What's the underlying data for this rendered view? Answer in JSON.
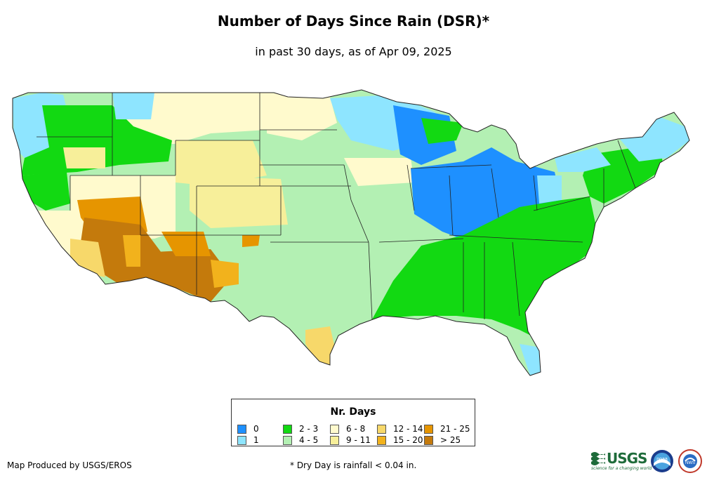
{
  "title": "Number of Days Since Rain (DSR)*",
  "subtitle": "in past 30 days, as of Apr 09, 2025",
  "legend": {
    "title": "Nr. Days",
    "items": [
      {
        "label": "0",
        "color": "#1e90ff"
      },
      {
        "label": "1",
        "color": "#8ee5ff"
      },
      {
        "label": "2 - 3",
        "color": "#12d912"
      },
      {
        "label": "4 - 5",
        "color": "#b3f0b3"
      },
      {
        "label": "6 - 8",
        "color": "#fffacd"
      },
      {
        "label": "9 - 11",
        "color": "#f7ef9a"
      },
      {
        "label": "12 - 14",
        "color": "#f7d86a"
      },
      {
        "label": "15 - 20",
        "color": "#f2b21c"
      },
      {
        "label": "21 - 25",
        "color": "#e69500"
      },
      {
        "label": "> 25",
        "color": "#c47a0c"
      }
    ]
  },
  "footer": {
    "producer": "Map Produced by USGS/EROS",
    "note": "* Dry Day is rainfall < 0.04 in."
  },
  "logos": [
    {
      "name": "USGS",
      "tagline": "science for a changing world"
    },
    {
      "name": "noaa"
    },
    {
      "name": "NWS"
    }
  ]
}
